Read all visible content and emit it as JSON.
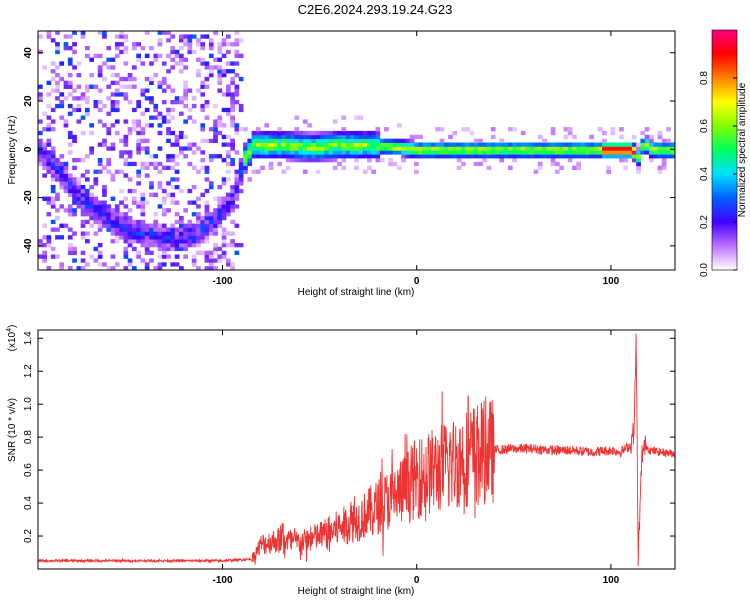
{
  "title": "C2E6.2024.293.19.24.G23",
  "chart_data": [
    {
      "type": "heatmap",
      "xlabel": "Height of straight line (km)",
      "ylabel": "Frequency (Hz)",
      "xlim": [
        -195,
        133
      ],
      "ylim": [
        -50,
        49
      ],
      "xticks": [
        -100,
        0,
        100
      ],
      "yticks": [
        -40,
        -20,
        0,
        20,
        40
      ],
      "colorbar": {
        "label": "Normalized spectral amplitude",
        "range": [
          0,
          1
        ],
        "ticks": [
          "0.0",
          "0.2",
          "0.4",
          "0.6",
          "0.8"
        ],
        "tick_values": [
          0.0,
          0.2,
          0.4,
          0.6,
          0.8
        ],
        "colors": [
          "#ffffff",
          "#c070ff",
          "#4000ff",
          "#0060ff",
          "#00e0ff",
          "#00ff60",
          "#80ff00",
          "#ffff00",
          "#ff8000",
          "#ff0000",
          "#ff0080"
        ]
      },
      "ridge": {
        "x": [
          -195,
          -185,
          -175,
          -165,
          -155,
          -145,
          -135,
          -125,
          -115,
          -105,
          -95,
          -90,
          -85,
          -70,
          -55,
          -40,
          -25,
          -10,
          0,
          20,
          40,
          60,
          80,
          100,
          110,
          113,
          116,
          120,
          133
        ],
        "y": [
          -2,
          -10,
          -20,
          -27,
          -32,
          -35,
          -37,
          -38,
          -36,
          -30,
          -20,
          -5,
          1,
          1,
          0,
          1,
          1,
          0,
          -1,
          -1,
          -1,
          -1,
          -1,
          -1,
          -1,
          -4,
          2,
          -1,
          -1
        ]
      }
    },
    {
      "type": "line",
      "xlabel": "Height of straight line (km)",
      "ylabel": "SNR (10 * v/v)",
      "yscale_label": "(x10",
      "yscale_exp": "4",
      "ylabel_full": "(x10^4)",
      "xlim": [
        -195,
        133
      ],
      "ylim": [
        0,
        1.45
      ],
      "xticks": [
        -100,
        0,
        100
      ],
      "yticks": [
        0.2,
        0.4,
        0.6,
        0.8,
        1.0,
        1.2,
        1.4
      ],
      "ytick_labels": [
        "0.2",
        "0.4",
        "0.6",
        "0.8",
        "1.0",
        "1.2",
        "1.4"
      ],
      "color": "#ee3333",
      "series": [
        {
          "x": [
            -195,
            -150,
            -100,
            -85,
            -80,
            -70,
            -60,
            -50,
            -40,
            -30,
            -20,
            -10,
            0,
            10,
            20,
            30,
            40,
            50,
            60,
            70,
            80,
            90,
            100,
            105,
            110,
            112,
            113,
            114,
            116,
            118,
            120,
            125,
            133
          ],
          "y": [
            0.05,
            0.05,
            0.05,
            0.06,
            0.15,
            0.18,
            0.16,
            0.2,
            0.25,
            0.3,
            0.38,
            0.45,
            0.55,
            0.6,
            0.65,
            0.7,
            0.72,
            0.73,
            0.73,
            0.72,
            0.72,
            0.71,
            0.72,
            0.71,
            0.75,
            0.85,
            1.42,
            0.05,
            0.7,
            0.75,
            0.72,
            0.71,
            0.7
          ]
        }
      ]
    }
  ]
}
